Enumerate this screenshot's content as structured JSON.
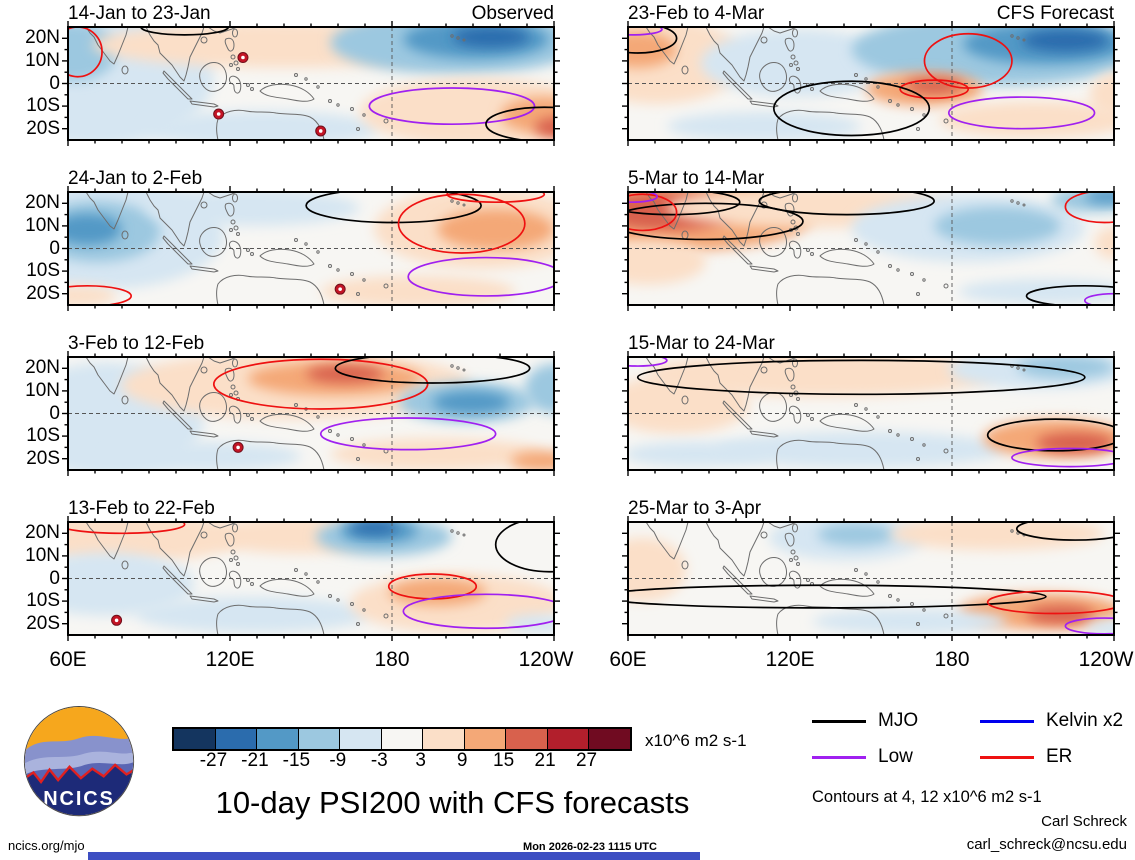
{
  "chart_data": {
    "type": "map-contour-grid",
    "main_title": "10-day PSI200 with CFS forecasts",
    "units_label": "x10^6 m2 s-1",
    "contour_note": "Contours at 4, 12 x10^6 m2 s-1",
    "credit_name": "Carl Schreck",
    "credit_email": "carl_schreck@ncsu.edu",
    "site": "ncics.org/mjo",
    "timestamp": "Mon 2026-02-23 1115 UTC",
    "logo_text": "NCICS",
    "axes": {
      "y_ticks": [
        "20N",
        "10N",
        "0",
        "10S",
        "20S"
      ],
      "x_ticks": [
        "60E",
        "120E",
        "180",
        "120W"
      ],
      "lat_range": [
        "25N",
        "25S"
      ],
      "lon_range": [
        "60E",
        "120W"
      ]
    },
    "colorbar": {
      "levels": [
        -27,
        -21,
        -15,
        -9,
        -3,
        3,
        9,
        15,
        21,
        27
      ],
      "colors": [
        "#14355f",
        "#2b6cad",
        "#5399c6",
        "#9cc8e0",
        "#d6e6f2",
        "#f7f6f3",
        "#fbdfc8",
        "#f4a877",
        "#d8614d",
        "#b21f2c",
        "#700b21"
      ],
      "neutral": "#f7f6f3"
    },
    "legend": [
      {
        "label": "MJO",
        "key": "MJO",
        "color": "#000000"
      },
      {
        "label": "Kelvin x2",
        "key": "Kelvin",
        "color": "#0000ee"
      },
      {
        "label": "Low",
        "key": "Low",
        "color": "#a020f0"
      },
      {
        "label": "ER",
        "key": "ER",
        "color": "#ee1111"
      }
    ],
    "panels": [
      {
        "title": "14-Jan to 23-Jan",
        "mode": "Observed",
        "shading": [
          [
            6,
            45,
            24,
            60,
            4
          ],
          [
            1,
            22,
            9,
            26,
            3
          ],
          [
            45,
            16,
            40,
            20,
            6
          ],
          [
            80,
            14,
            26,
            28,
            3
          ],
          [
            84,
            11,
            15,
            17,
            2
          ],
          [
            87,
            9,
            8,
            9,
            1
          ],
          [
            40,
            90,
            24,
            16,
            4
          ],
          [
            84,
            75,
            24,
            30,
            6
          ],
          [
            98,
            78,
            9,
            16,
            7
          ],
          [
            101,
            89,
            5,
            9,
            8
          ]
        ],
        "contours": [
          [
            79,
            70,
            17,
            16,
            "Low"
          ],
          [
            98,
            86,
            12,
            15,
            "MJO"
          ],
          [
            24,
            0,
            9,
            7,
            "MJO"
          ],
          [
            2,
            22,
            5,
            22,
            "ER"
          ]
        ],
        "cyclones": [
          [
            36,
            27
          ],
          [
            31,
            77
          ],
          [
            52,
            92
          ]
        ]
      },
      {
        "title": "24-Jan to 2-Feb",
        "mode": "",
        "shading": [
          [
            8,
            38,
            24,
            48,
            4
          ],
          [
            6,
            35,
            13,
            27,
            3
          ],
          [
            4,
            33,
            7,
            14,
            2
          ],
          [
            38,
            14,
            22,
            16,
            4
          ],
          [
            85,
            32,
            22,
            36,
            6
          ],
          [
            88,
            33,
            12,
            18,
            7
          ],
          [
            72,
            88,
            20,
            14,
            6
          ],
          [
            2,
            92,
            8,
            9,
            6
          ]
        ],
        "contours": [
          [
            67,
            12,
            18,
            15,
            "MJO"
          ],
          [
            81,
            28,
            13,
            26,
            "ER"
          ],
          [
            88,
            2,
            10,
            7,
            "ER"
          ],
          [
            86,
            75,
            16,
            17,
            "Low"
          ],
          [
            4,
            92,
            9,
            9,
            "ER"
          ]
        ],
        "cyclones": [
          [
            56,
            86
          ]
        ]
      },
      {
        "title": "3-Feb to 12-Feb",
        "mode": "",
        "shading": [
          [
            8,
            55,
            20,
            50,
            4
          ],
          [
            47,
            25,
            36,
            30,
            6
          ],
          [
            55,
            19,
            18,
            15,
            7
          ],
          [
            57,
            15,
            8,
            8,
            8
          ],
          [
            82,
            40,
            14,
            18,
            3
          ],
          [
            83,
            40,
            8,
            10,
            2
          ],
          [
            100,
            28,
            6,
            22,
            3
          ],
          [
            28,
            88,
            20,
            13,
            4
          ],
          [
            76,
            86,
            22,
            14,
            6
          ],
          [
            98,
            92,
            7,
            9,
            7
          ]
        ],
        "contours": [
          [
            52,
            24,
            22,
            22,
            "ER"
          ],
          [
            75,
            10,
            20,
            13,
            "MJO"
          ],
          [
            70,
            68,
            18,
            14,
            "Low"
          ]
        ],
        "cyclones": [
          [
            35,
            80
          ]
        ]
      },
      {
        "title": "13-Feb to 22-Feb",
        "mode": "",
        "shading": [
          [
            10,
            14,
            26,
            22,
            6
          ],
          [
            48,
            12,
            20,
            16,
            6
          ],
          [
            65,
            13,
            14,
            17,
            3
          ],
          [
            64,
            8,
            8,
            10,
            2
          ],
          [
            63,
            5,
            5,
            6,
            1
          ],
          [
            8,
            55,
            18,
            28,
            4
          ],
          [
            38,
            82,
            24,
            16,
            4
          ],
          [
            80,
            72,
            22,
            26,
            6
          ],
          [
            76,
            62,
            10,
            12,
            7
          ],
          [
            97,
            90,
            7,
            8,
            4
          ]
        ],
        "contours": [
          [
            11,
            2,
            13,
            8,
            "ER"
          ],
          [
            75,
            57,
            9,
            11,
            "ER"
          ],
          [
            86,
            79,
            17,
            15,
            "Low"
          ],
          [
            99,
            20,
            11,
            24,
            "MJO"
          ]
        ],
        "cyclones": [
          [
            10,
            87
          ]
        ]
      },
      {
        "title": "23-Feb to 4-Mar",
        "mode": "CFS Forecast",
        "shading": [
          [
            6,
            30,
            18,
            38,
            6
          ],
          [
            2,
            20,
            8,
            16,
            7
          ],
          [
            35,
            32,
            20,
            30,
            4
          ],
          [
            76,
            20,
            30,
            32,
            3
          ],
          [
            86,
            15,
            17,
            18,
            2
          ],
          [
            90,
            12,
            9,
            10,
            1
          ],
          [
            61,
            55,
            12,
            15,
            7
          ],
          [
            63,
            52,
            6,
            7,
            8
          ],
          [
            84,
            82,
            20,
            16,
            6
          ],
          [
            28,
            88,
            20,
            13,
            4
          ],
          [
            101,
            60,
            6,
            20,
            6
          ]
        ],
        "contours": [
          [
            2,
            10,
            8,
            13,
            "MJO"
          ],
          [
            1,
            2,
            6,
            5,
            "Low"
          ],
          [
            70,
            30,
            9,
            24,
            "ER"
          ],
          [
            63,
            55,
            7,
            8,
            "ER"
          ],
          [
            81,
            76,
            15,
            14,
            "Low"
          ],
          [
            46,
            72,
            16,
            24,
            "MJO"
          ]
        ],
        "cyclones": []
      },
      {
        "title": "5-Mar to 14-Mar",
        "mode": "",
        "shading": [
          [
            12,
            22,
            26,
            30,
            7
          ],
          [
            8,
            17,
            14,
            17,
            8
          ],
          [
            38,
            14,
            30,
            18,
            6
          ],
          [
            4,
            62,
            12,
            20,
            6
          ],
          [
            70,
            32,
            24,
            30,
            4
          ],
          [
            76,
            30,
            13,
            17,
            3
          ],
          [
            96,
            7,
            9,
            11,
            3
          ],
          [
            99,
            4,
            5,
            6,
            2
          ],
          [
            86,
            88,
            18,
            11,
            4
          ],
          [
            100,
            45,
            4,
            14,
            6
          ]
        ],
        "contours": [
          [
            9,
            9,
            14,
            11,
            "MJO"
          ],
          [
            16,
            26,
            20,
            16,
            "MJO"
          ],
          [
            3,
            18,
            7,
            16,
            "ER"
          ],
          [
            1,
            4,
            5,
            5,
            "Low"
          ],
          [
            45,
            8,
            18,
            12,
            "MJO"
          ],
          [
            98,
            13,
            8,
            14,
            "ER"
          ],
          [
            94,
            92,
            12,
            9,
            "MJO"
          ],
          [
            100,
            96,
            6,
            6,
            "Low"
          ]
        ],
        "cyclones": []
      },
      {
        "title": "15-Mar to 24-Mar",
        "mode": "",
        "shading": [
          [
            40,
            15,
            36,
            20,
            6
          ],
          [
            10,
            42,
            15,
            26,
            6
          ],
          [
            85,
            11,
            19,
            17,
            4
          ],
          [
            90,
            9,
            10,
            10,
            3
          ],
          [
            48,
            82,
            30,
            16,
            4
          ],
          [
            14,
            86,
            15,
            11,
            4
          ],
          [
            88,
            72,
            15,
            17,
            7
          ],
          [
            92,
            76,
            8,
            9,
            8
          ]
        ],
        "contours": [
          [
            48,
            18,
            46,
            15,
            "MJO"
          ],
          [
            2,
            3,
            6,
            5,
            "Low"
          ],
          [
            88,
            69,
            14,
            14,
            "MJO"
          ],
          [
            91,
            89,
            12,
            8,
            "Low"
          ]
        ],
        "cyclones": []
      },
      {
        "title": "25-Mar to 3-Apr",
        "mode": "",
        "shading": [
          [
            45,
            14,
            16,
            20,
            4
          ],
          [
            47,
            11,
            8,
            10,
            3
          ],
          [
            3,
            42,
            9,
            28,
            6
          ],
          [
            76,
            10,
            22,
            15,
            6
          ],
          [
            85,
            79,
            17,
            16,
            7
          ],
          [
            89,
            82,
            7,
            8,
            8
          ],
          [
            58,
            88,
            20,
            11,
            4
          ],
          [
            100,
            94,
            6,
            7,
            4
          ]
        ],
        "contours": [
          [
            92,
            6,
            12,
            10,
            "MJO"
          ],
          [
            40,
            66,
            46,
            10,
            "MJO"
          ],
          [
            88,
            71,
            14,
            10,
            "ER"
          ],
          [
            98,
            92,
            8,
            7,
            "Low"
          ]
        ],
        "cyclones": []
      }
    ],
    "footer_bar_color": "#3d4ec2",
    "logo_colors": {
      "sky": "#f6a71d",
      "ridge1": "#8892cc",
      "ridge2": "#aab3dd",
      "ridge3": "#5a66b4",
      "base": "#1d2a78",
      "ridge_line": "#e02020"
    }
  }
}
